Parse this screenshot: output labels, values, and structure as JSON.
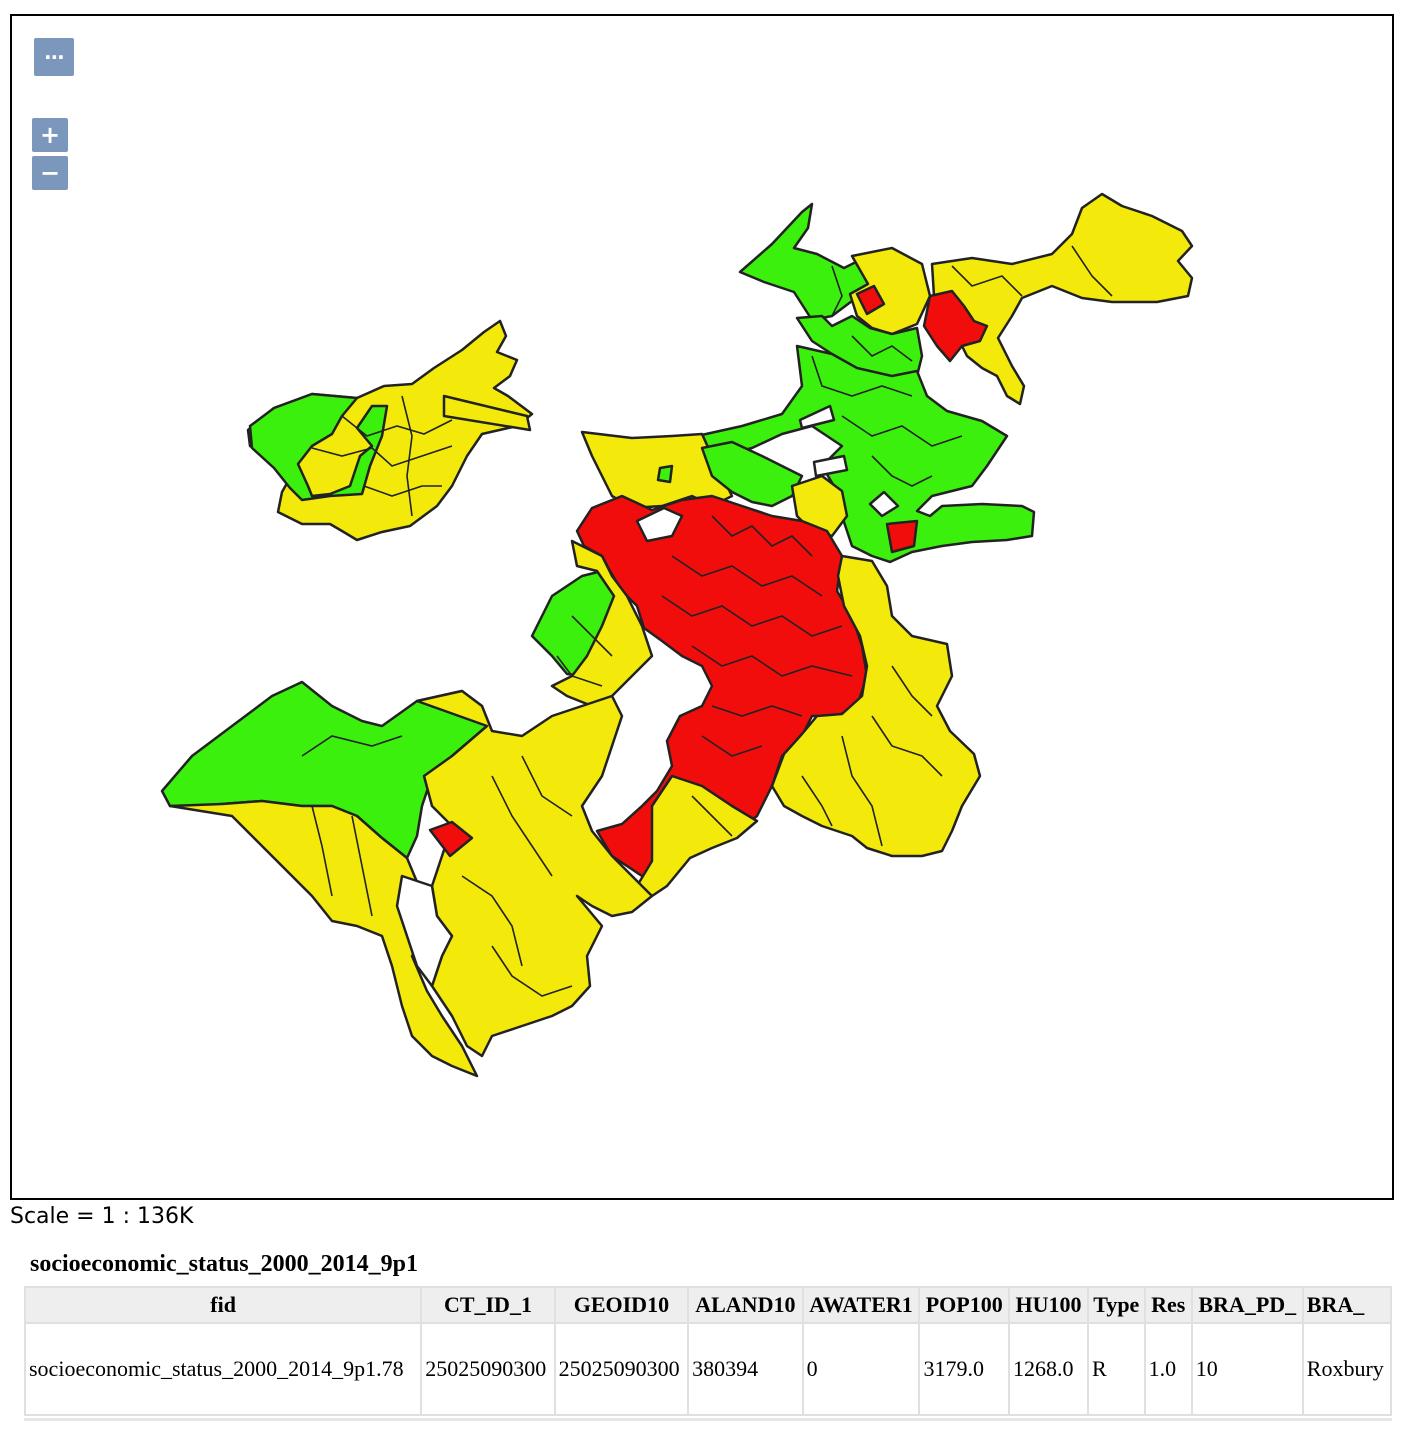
{
  "map": {
    "controls": {
      "layer_switcher": "⋯",
      "zoom_in": "+",
      "zoom_out": "−"
    },
    "colors": {
      "high": "#3cf00e",
      "medium": "#f3ea0b",
      "low": "#f10d0c",
      "border": "#222222"
    }
  },
  "scale": {
    "text": "Scale = 1 : 136K"
  },
  "layer": {
    "title": "socioeconomic_status_2000_2014_9p1"
  },
  "table": {
    "columns": [
      "fid",
      "CT_ID_1",
      "GEOID10",
      "ALAND10",
      "AWATER1",
      "POP100",
      "HU100",
      "Type",
      "Res",
      "BRA_PD_",
      "BRA_"
    ],
    "rows": [
      [
        "socioeconomic_status_2000_2014_9p1.78",
        "25025090300",
        "25025090300",
        "380394",
        "0",
        "3179.0",
        "1268.0",
        "R",
        "1.0",
        "10",
        "Roxbury"
      ]
    ]
  }
}
